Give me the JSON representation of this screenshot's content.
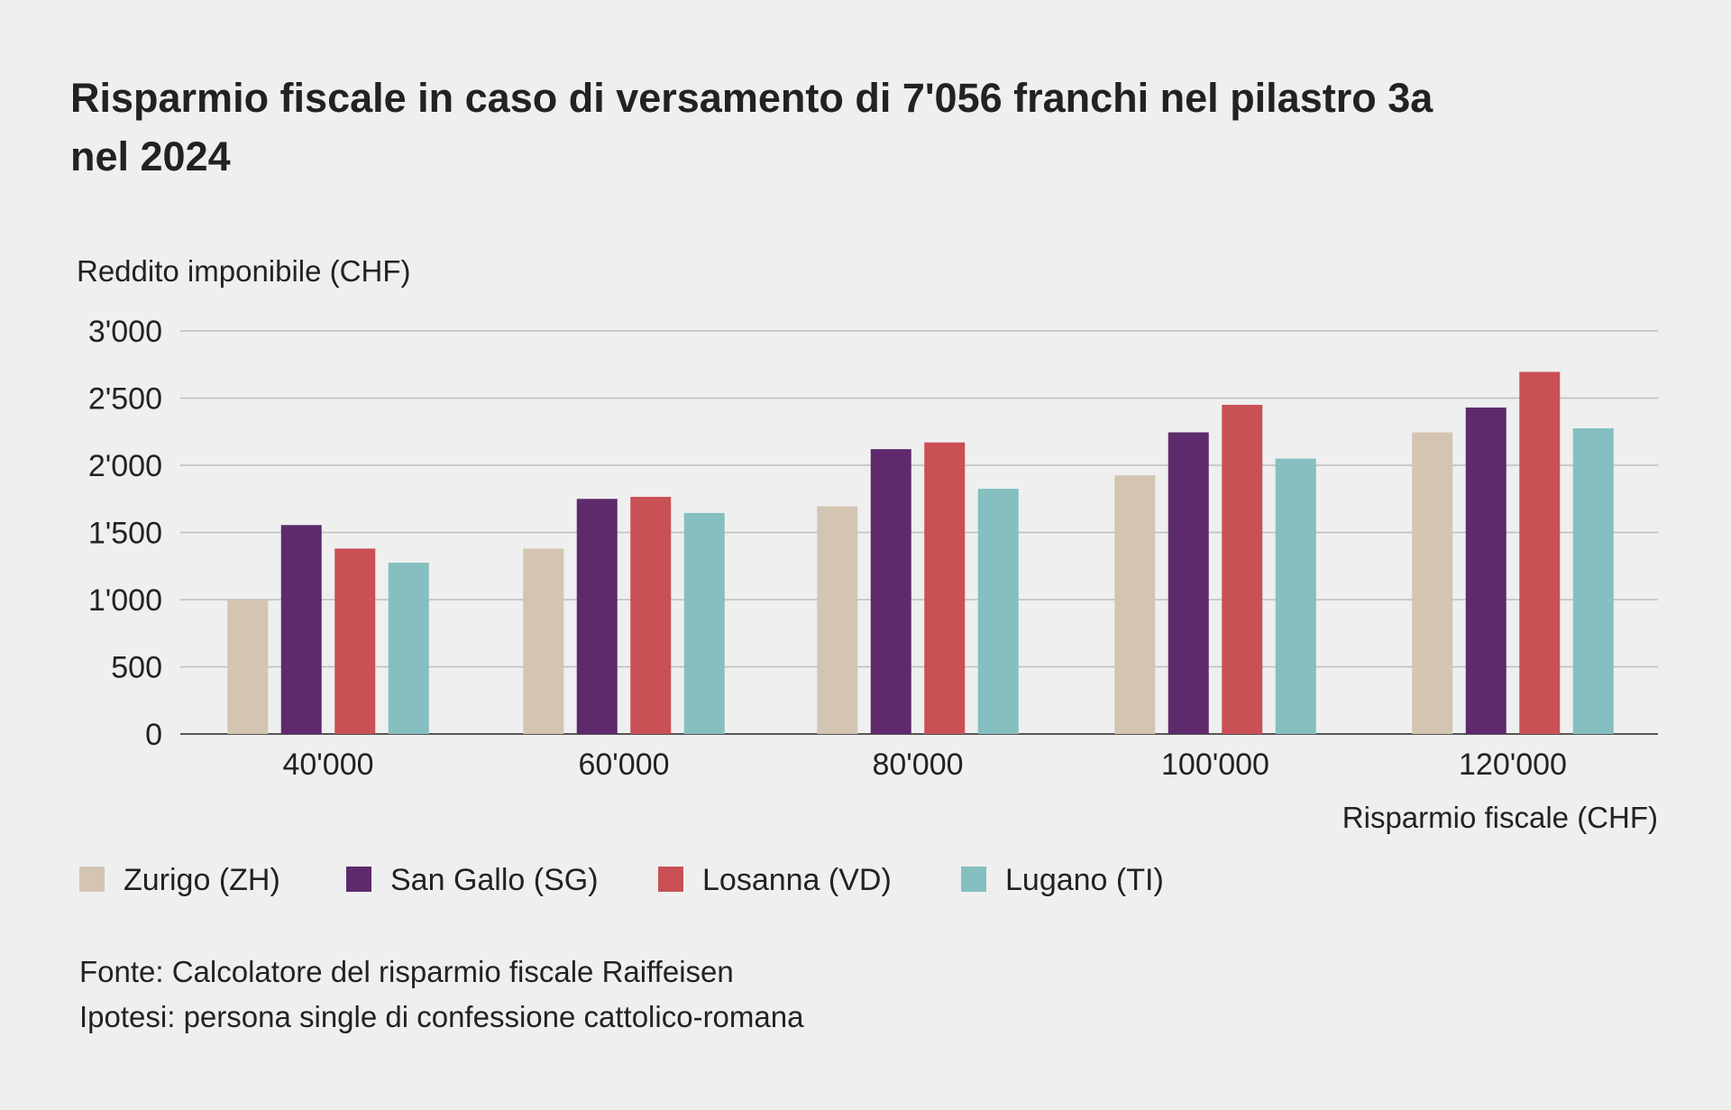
{
  "chart_data": {
    "type": "bar",
    "title_lines": [
      "Risparmio fiscale in caso di versamento di 7'056 franchi nel pilastro 3a",
      "nel 2024"
    ],
    "ylabel": "Reddito imponibile (CHF)",
    "xlabel": "Risparmio fiscale (CHF)",
    "ylim": [
      0,
      3000
    ],
    "yticks": [
      0,
      500,
      1000,
      1500,
      2000,
      2500,
      3000
    ],
    "ytick_labels": [
      "0",
      "500",
      "1'000",
      "1'500",
      "2'000",
      "2'500",
      "3'000"
    ],
    "grid": true,
    "legend_position": "bottom-left",
    "categories": [
      "40'000",
      "60'000",
      "80'000",
      "100'000",
      "120'000"
    ],
    "series": [
      {
        "name": "Zurigo (ZH)",
        "color": "#d3c5b2",
        "values": [
          1000,
          1380,
          1695,
          1925,
          2245
        ]
      },
      {
        "name": "San Gallo (SG)",
        "color": "#5e2a6b",
        "values": [
          1555,
          1750,
          2120,
          2245,
          2430
        ]
      },
      {
        "name": "Losanna (VD)",
        "color": "#c95055",
        "values": [
          1380,
          1765,
          2170,
          2450,
          2695
        ]
      },
      {
        "name": "Lugano (TI)",
        "color": "#85bfbf",
        "values": [
          1275,
          1645,
          1825,
          2050,
          2275
        ]
      }
    ],
    "notes": [
      "Fonte: Calcolatore del risparmio fiscale Raiffeisen",
      "Ipotesi: persona single di confessione cattolico-romana"
    ]
  }
}
